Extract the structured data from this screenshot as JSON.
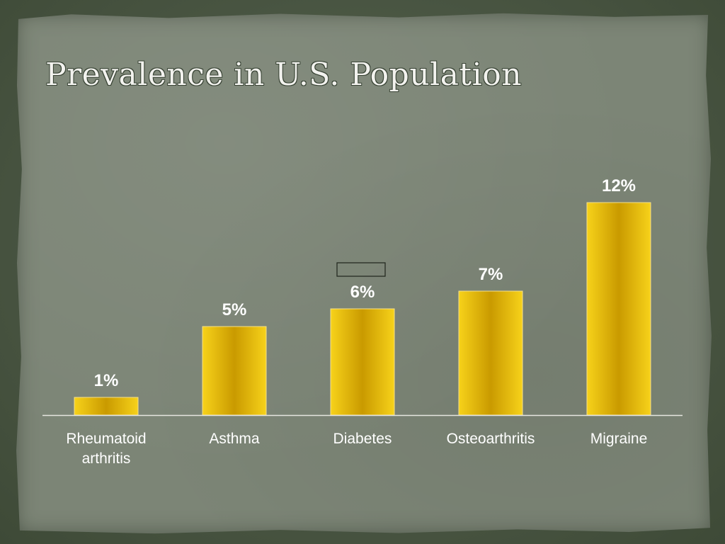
{
  "slide": {
    "title": "Prevalence in U.S. Population"
  },
  "chart_data": {
    "type": "bar",
    "title": "",
    "xlabel": "",
    "ylabel": "",
    "categories": [
      "Rheumatoid arthritis",
      "Asthma",
      "Diabetes",
      "Osteoarthritis",
      "Migraine"
    ],
    "category_lines": [
      [
        "Rheumatoid",
        "arthritis"
      ],
      [
        "Asthma"
      ],
      [
        "Diabetes"
      ],
      [
        "Osteoarthritis"
      ],
      [
        "Migraine"
      ]
    ],
    "values": [
      1,
      5,
      6,
      7,
      12
    ],
    "data_labels": [
      "1%",
      "5%",
      "6%",
      "7%",
      "12%"
    ],
    "unit": "%",
    "ylim": [
      0,
      12.6
    ],
    "grid": false,
    "legend": "none",
    "colors": {
      "bar": "#e8b800",
      "bar_light": "#f7d21a",
      "bar_dark": "#c99a00",
      "axis": "#e6e6e0",
      "labels": "#ffffff"
    }
  }
}
